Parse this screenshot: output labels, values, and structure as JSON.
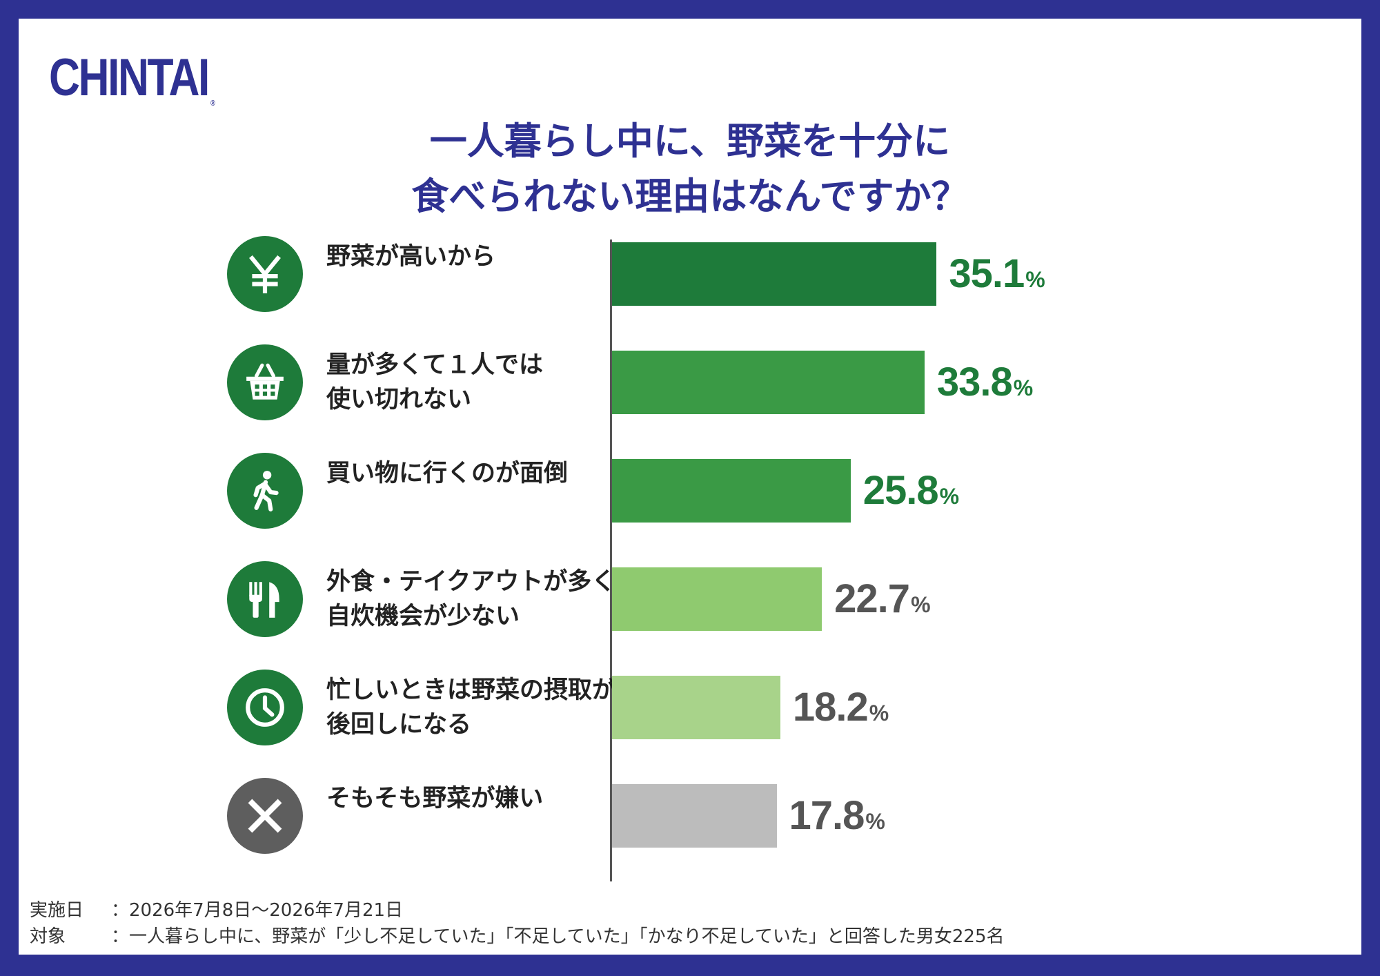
{
  "brand": {
    "logo_text": "CHINTAI",
    "registered_mark": "®"
  },
  "title_lines": [
    "一人暮らし中に、野菜を十分に",
    "食べられない理由はなんですか？"
  ],
  "chart_data": {
    "type": "bar",
    "orientation": "horizontal",
    "title": "一人暮らし中に、野菜を十分に食べられない理由はなんですか？",
    "categories": [
      "野菜が高いから",
      "量が多くて１人では使い切れない",
      "買い物に行くのが面倒",
      "外食・テイクアウトが多く自炊機会が少ない",
      "忙しいときは野菜の摂取が後回しになる",
      "そもそも野菜が嫌い"
    ],
    "values": [
      35.1,
      33.8,
      25.8,
      22.7,
      18.2,
      17.8
    ],
    "unit": "%",
    "value_labels": [
      "35.1",
      "33.8",
      "25.8",
      "22.7",
      "18.2",
      "17.8"
    ],
    "xlim": [
      0,
      60
    ],
    "grid": false,
    "legend": "none",
    "bar_colors": [
      "#1e7b3a",
      "#3a9a45",
      "#3a9a45",
      "#8fca6f",
      "#a8d38a",
      "#bcbcbc"
    ],
    "value_colors": [
      "#1e7b3a",
      "#1e7b3a",
      "#1e7b3a",
      "#555555",
      "#555555",
      "#555555"
    ],
    "items": [
      {
        "label_lines": [
          "野菜が高いから"
        ],
        "icon": "yen-icon"
      },
      {
        "label_lines": [
          "量が多くて１人では",
          "使い切れない"
        ],
        "icon": "basket-icon"
      },
      {
        "label_lines": [
          "買い物に行くのが面倒"
        ],
        "icon": "walking-person-icon"
      },
      {
        "label_lines": [
          "外食・テイクアウトが多く",
          "自炊機会が少ない"
        ],
        "icon": "fork-knife-icon"
      },
      {
        "label_lines": [
          "忙しいときは野菜の摂取が",
          "後回しになる"
        ],
        "icon": "clock-icon"
      },
      {
        "label_lines": [
          "そもそも野菜が嫌い"
        ],
        "icon": "cross-icon"
      }
    ]
  },
  "footnote": {
    "date_label": "実施日",
    "date_value": "：2026年7月8日～2026年7月21日",
    "target_label": "対象",
    "target_value": "：一人暮らし中に、野菜が「少し不足していた」「不足していた」「かなり不足していた」と回答した男女225名"
  },
  "colors": {
    "frame": "#2e3192",
    "title": "#2e3192",
    "icon_green": "#1e7b3a",
    "icon_gray": "#5e5e5e"
  }
}
